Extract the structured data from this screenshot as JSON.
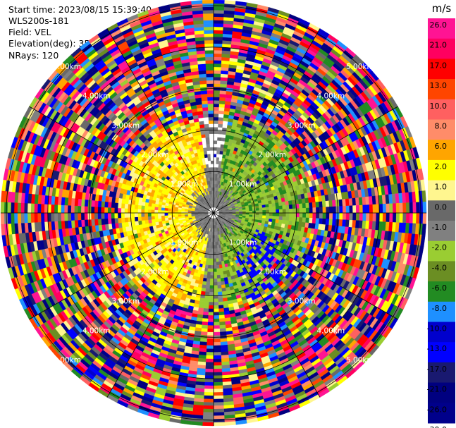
{
  "info": {
    "start_time": "Start time: 2023/08/15 15:39:40",
    "instrument": "WLS200s-181",
    "field": "Field: VEL",
    "elevation": "Elevation(deg): 35.30",
    "nrays": "NRays: 120"
  },
  "chart_data": {
    "type": "heatmap",
    "projection": "polar (PPI scan)",
    "field": "VEL",
    "n_rays": 120,
    "range_rings_km": [
      1.0,
      2.0,
      3.0,
      4.0,
      5.0
    ],
    "range_ring_labels": [
      "1.00km",
      "2.00km",
      "3.00km",
      "4.00km",
      "5.00km"
    ],
    "spoke_angles_deg": [
      0,
      30,
      60,
      90,
      120,
      150,
      180,
      210,
      240,
      270,
      300,
      330
    ],
    "near_field_pattern": {
      "west_sector": "positive (yellow, 2-6 m/s)",
      "east_sector": "negative (green, -2 to -8 m/s)",
      "core": "near zero (gray)",
      "outer_ranges": "noise (random colors)"
    },
    "colorbar": {
      "unit": "m/s",
      "tick_labels": [
        "26.0",
        "21.0",
        "17.0",
        "13.0",
        "10.0",
        "8.0",
        "6.0",
        "2.0",
        "1.0",
        "0.0",
        "-1.0",
        "-2.0",
        "-4.0",
        "-6.0",
        "-8.0",
        "-10.0",
        "-13.0",
        "-17.0",
        "-21.0",
        "-26.0",
        "-30.0"
      ],
      "colors": [
        "#ff1493",
        "#ff0060",
        "#ff0000",
        "#ff4500",
        "#ff6060",
        "#ff8c69",
        "#ffa500",
        "#ffff00",
        "#fff68f",
        "#696969",
        "#808080",
        "#9acd32",
        "#6b8e23",
        "#228b22",
        "#1e90ff",
        "#0000cd",
        "#0000ff",
        "#191970",
        "#000080",
        "#00008b"
      ]
    }
  }
}
